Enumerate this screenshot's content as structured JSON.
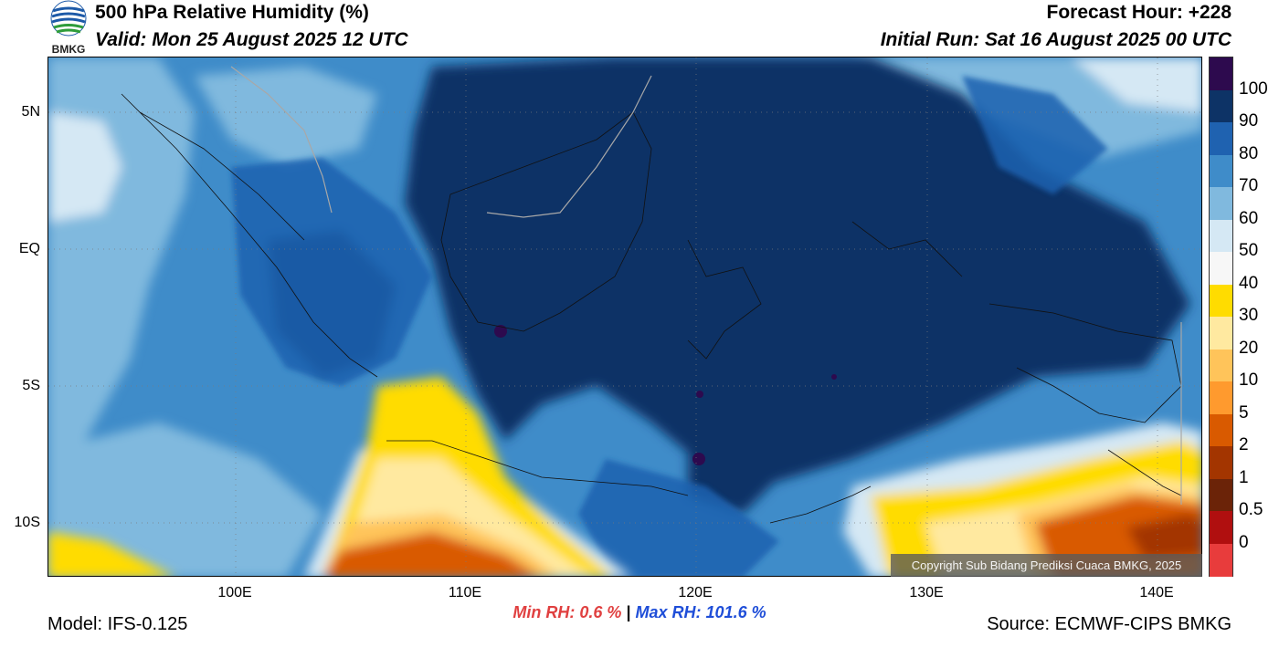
{
  "header": {
    "title": "500 hPa Relative Humidity (%)",
    "valid": "Valid: Mon 25 August 2025 12 UTC",
    "forecast_hour": "Forecast Hour: +228",
    "initial_run": "Initial Run: Sat 16 August 2025 00 UTC",
    "logo_text": "BMKG"
  },
  "axes": {
    "y_ticks": [
      "5N",
      "EQ",
      "5S",
      "10S"
    ],
    "x_ticks": [
      "100E",
      "110E",
      "120E",
      "130E",
      "140E"
    ]
  },
  "colorbar": {
    "labels": [
      "100",
      "90",
      "80",
      "70",
      "60",
      "50",
      "40",
      "30",
      "20",
      "10",
      "5",
      "2",
      "1",
      "0.5",
      "0"
    ],
    "colors": [
      "#2d0a4e",
      "#0d3366",
      "#1f62b0",
      "#3f8cc9",
      "#80b9de",
      "#d5e8f4",
      "#f7f7f7",
      "#ffdc00",
      "#ffe9a0",
      "#ffc45a",
      "#ff9a2e",
      "#d95a00",
      "#a33500",
      "#6b2308",
      "#b00f0f",
      "#e83c3c"
    ]
  },
  "stats": {
    "min_label": "Min RH:",
    "min_value": "0.6 %",
    "separator": "|",
    "max_label": "Max RH:",
    "max_value": "101.6 %"
  },
  "footer": {
    "model": "Model: IFS-0.125",
    "source": "Source: ECMWF-CIPS BMKG",
    "copyright": "Copyright Sub Bidang Prediksi Cuaca BMKG, 2025"
  }
}
